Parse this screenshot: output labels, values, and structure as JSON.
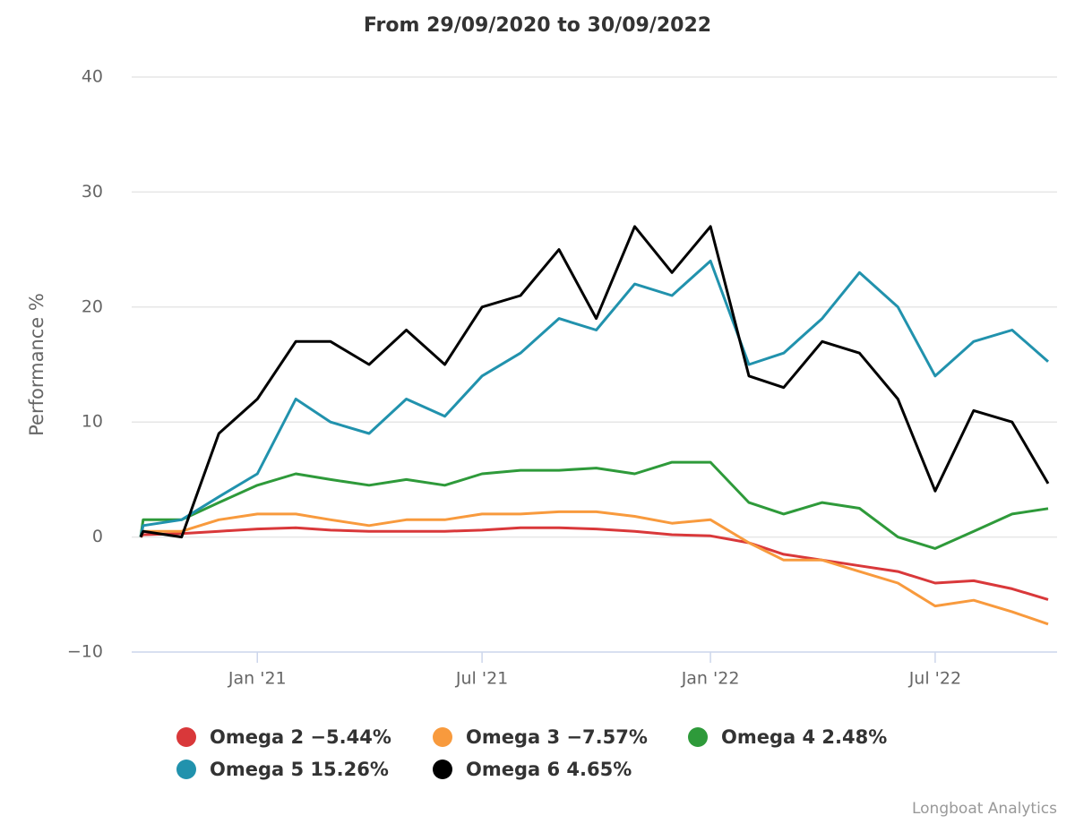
{
  "chart_data": {
    "type": "line",
    "title": "From 29/09/2020 to 30/09/2022",
    "y_label": "Performance %",
    "credit": "Longboat Analytics",
    "x": [
      "2020-09-29",
      "2020-10",
      "2020-11",
      "2020-12",
      "2021-01",
      "2021-02",
      "2021-03",
      "2021-04",
      "2021-05",
      "2021-06",
      "2021-07",
      "2021-08",
      "2021-09",
      "2021-10",
      "2021-11",
      "2021-12",
      "2022-01",
      "2022-02",
      "2022-03",
      "2022-04",
      "2022-05",
      "2022-06",
      "2022-07",
      "2022-08",
      "2022-09",
      "2022-09-30"
    ],
    "xlim": [
      "2020-09-29",
      "2022-09-30"
    ],
    "xticks": [
      {
        "value": "2021-01",
        "label": "Jan '21"
      },
      {
        "value": "2021-07",
        "label": "Jul '21"
      },
      {
        "value": "2022-01",
        "label": "Jan '22"
      },
      {
        "value": "2022-07",
        "label": "Jul '22"
      }
    ],
    "ylim": [
      -10,
      40
    ],
    "yticks": [
      {
        "value": -10,
        "label": "−10"
      },
      0,
      10,
      20,
      30,
      40
    ],
    "grid": true,
    "series": [
      {
        "name": "Omega 2 −5.44%",
        "color": "#d9383a",
        "values": [
          0,
          0.2,
          0.3,
          0.5,
          0.7,
          0.8,
          0.6,
          0.5,
          0.5,
          0.5,
          0.6,
          0.8,
          0.8,
          0.7,
          0.5,
          0.2,
          0.1,
          -0.5,
          -1.5,
          -2,
          -2.5,
          -3,
          -4,
          -3.8,
          -4.5,
          -5.44
        ]
      },
      {
        "name": "Omega 3 −7.57%",
        "color": "#f89a3d",
        "values": [
          0,
          0.5,
          0.5,
          1.5,
          2,
          2,
          1.5,
          1,
          1.5,
          1.5,
          2,
          2,
          2.2,
          2.2,
          1.8,
          1.2,
          1.5,
          -0.5,
          -2,
          -2,
          -3,
          -4,
          -6,
          -5.5,
          -6.5,
          -7.57
        ]
      },
      {
        "name": "Omega 4 2.48%",
        "color": "#2e9a3a",
        "values": [
          0,
          1.5,
          1.5,
          3,
          4.5,
          5.5,
          5,
          4.5,
          5,
          4.5,
          5.5,
          5.8,
          5.8,
          6,
          5.5,
          6.5,
          6.5,
          3,
          2,
          3,
          2.5,
          0,
          -1,
          0.5,
          2,
          2.48
        ]
      },
      {
        "name": "Omega 5 15.26%",
        "color": "#2192ad",
        "values": [
          0,
          1,
          1.5,
          3.5,
          5.5,
          12,
          10,
          9,
          12,
          10.5,
          14,
          16,
          19,
          18,
          22,
          21,
          24,
          15,
          16,
          19,
          23,
          20,
          14,
          17,
          18,
          15.26
        ]
      },
      {
        "name": "Omega 6 4.65%",
        "color": "#000000",
        "values": [
          0,
          0.5,
          0,
          9,
          12,
          17,
          17,
          15,
          18,
          15,
          20,
          21,
          25,
          19,
          27,
          23,
          27,
          14,
          13,
          17,
          16,
          12,
          4,
          11,
          10,
          4.65
        ]
      }
    ]
  }
}
